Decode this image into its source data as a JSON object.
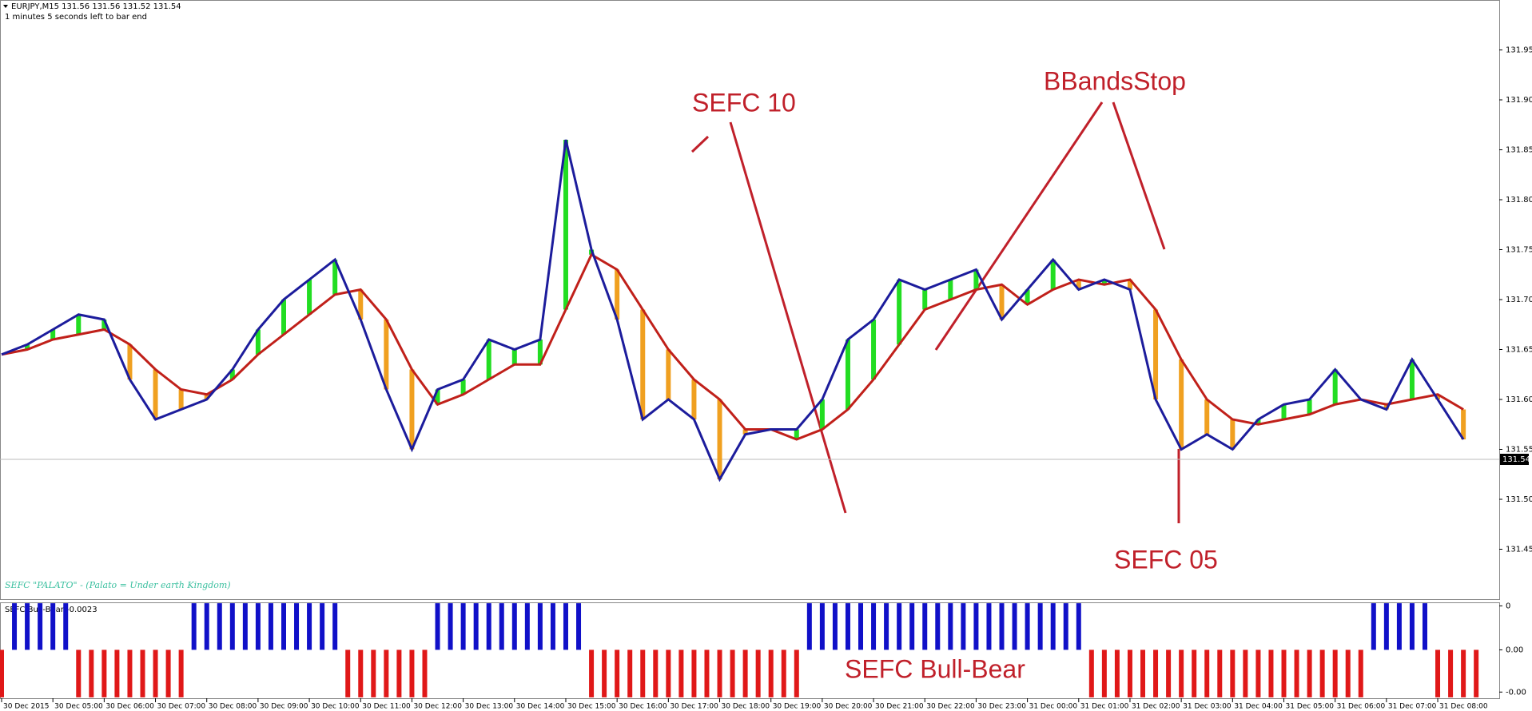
{
  "header": {
    "symbol": "EURJPY,M15  131.56 131.56 131.52 131.54",
    "timer": "1 minutes 5 seconds left to bar end",
    "indicator_note": "SEFC \"PALATO\" - (Palato = Under earth Kingdom)"
  },
  "annotations": {
    "sefc10": "SEFC 10",
    "bbands": "BBandsStop",
    "sefc05": "SEFC 05",
    "bullbear": "SEFC Bull-Bear"
  },
  "chart_data": [
    {
      "type": "line",
      "categories": [
        "30 Dec 2015",
        null,
        "30 Dec 05:00",
        null,
        "30 Dec 06:00",
        null,
        "30 Dec 07:00",
        null,
        "30 Dec 08:00",
        null,
        "30 Dec 09:00",
        null,
        "30 Dec 10:00",
        null,
        "30 Dec 11:00",
        null,
        "30 Dec 12:00",
        null,
        "30 Dec 13:00",
        null,
        "30 Dec 14:00",
        null,
        "30 Dec 15:00",
        null,
        "30 Dec 16:00",
        null,
        "30 Dec 17:00",
        null,
        "30 Dec 18:00",
        null,
        "30 Dec 19:00",
        null,
        "30 Dec 20:00",
        null,
        "30 Dec 21:00",
        null,
        "30 Dec 22:00",
        null,
        "30 Dec 23:00",
        null,
        "31 Dec 00:00",
        null,
        "31 Dec 01:00",
        null,
        "31 Dec 02:00",
        null,
        "31 Dec 03:00",
        null,
        "31 Dec 04:00",
        null,
        "31 Dec 05:00",
        null,
        "31 Dec 06:00",
        null,
        "31 Dec 07:00",
        null,
        "31 Dec 08:00",
        null
      ],
      "series": [
        {
          "color": "#1c1c9c",
          "values": [
            131.645,
            131.655,
            131.67,
            131.685,
            131.68,
            131.62,
            131.58,
            131.59,
            131.6,
            131.63,
            131.67,
            131.7,
            131.72,
            131.74,
            131.68,
            131.61,
            131.55,
            131.61,
            131.62,
            131.66,
            131.65,
            131.66,
            131.86,
            131.75,
            131.68,
            131.58,
            131.6,
            131.58,
            131.52,
            131.565,
            131.57,
            131.57,
            131.6,
            131.66,
            131.68,
            131.72,
            131.71,
            131.72,
            131.73,
            131.68,
            131.71,
            131.74,
            131.71,
            131.72,
            131.71,
            131.6,
            131.55,
            131.565,
            131.55,
            131.58,
            131.595,
            131.6,
            131.63,
            131.6,
            131.59,
            131.64,
            131.6,
            131.56
          ]
        },
        {
          "color": "#c0201a",
          "values": [
            131.645,
            131.65,
            131.66,
            131.665,
            131.67,
            131.655,
            131.63,
            131.61,
            131.605,
            131.62,
            131.645,
            131.665,
            131.685,
            131.705,
            131.71,
            131.68,
            131.63,
            131.595,
            131.605,
            131.62,
            131.635,
            131.635,
            131.69,
            131.745,
            131.73,
            131.69,
            131.65,
            131.62,
            131.6,
            131.57,
            131.57,
            131.56,
            131.57,
            131.59,
            131.62,
            131.655,
            131.69,
            131.7,
            131.71,
            131.715,
            131.695,
            131.71,
            131.72,
            131.715,
            131.72,
            131.69,
            131.64,
            131.6,
            131.58,
            131.575,
            131.58,
            131.585,
            131.595,
            131.6,
            131.595,
            131.6,
            131.605,
            131.59
          ]
        }
      ],
      "up_color": "#22dd22",
      "down_color": "#f0a020",
      "ylim": [
        131.4,
        132.0
      ],
      "yticks": [
        131.45,
        {
          "value": 131.5,
          "label": "131.50"
        },
        131.55,
        {
          "value": 131.6,
          "label": "131.60"
        },
        131.65,
        {
          "value": 131.7,
          "label": "131.70"
        },
        131.75,
        {
          "value": 131.8,
          "label": "131.80"
        },
        131.85,
        {
          "value": 131.9,
          "label": "131.90"
        },
        131.95
      ],
      "last_price": 131.54
    },
    {
      "type": "bar",
      "title": "SEFC Bull-Bear -0.0023",
      "up_color": "#1010c8",
      "down_color": "#e01818",
      "values": [
        -0.0054,
        0.0053,
        0.0053,
        0.0053,
        0.0053,
        0.0053,
        -0.0054,
        -0.0054,
        -0.0054,
        -0.0054,
        -0.0054,
        -0.0054,
        -0.0054,
        -0.0054,
        -0.0054,
        0.0053,
        0.0053,
        0.0053,
        0.0053,
        0.0053,
        0.0053,
        0.0053,
        0.0053,
        0.0053,
        0.0053,
        0.0053,
        0.0053,
        -0.0054,
        -0.0054,
        -0.0054,
        -0.0054,
        -0.0054,
        -0.0054,
        -0.0054,
        0.0053,
        0.0053,
        0.0053,
        0.0053,
        0.0053,
        0.0053,
        0.0053,
        0.0053,
        0.0053,
        0.0053,
        0.0053,
        0.0053,
        -0.0054,
        -0.0054,
        -0.0054,
        -0.0054,
        -0.0054,
        -0.0054,
        -0.0054,
        -0.0054,
        -0.0054,
        -0.0054,
        -0.0054,
        -0.0054,
        -0.0054,
        -0.0054,
        -0.0054,
        -0.0054,
        -0.0054,
        0.0053,
        0.0053,
        0.0053,
        0.0053,
        0.0053,
        0.0053,
        0.0053,
        0.0053,
        0.0053,
        0.0053,
        0.0053,
        0.0053,
        0.0053,
        0.0053,
        0.0053,
        0.0053,
        0.0053,
        0.0053,
        0.0053,
        0.0053,
        0.0053,
        0.0053,
        -0.0054,
        -0.0054,
        -0.0054,
        -0.0054,
        -0.0054,
        -0.0054,
        -0.0054,
        -0.0054,
        -0.0054,
        -0.0054,
        -0.0054,
        -0.0054,
        -0.0054,
        -0.0054,
        -0.0054,
        -0.0054,
        -0.0054,
        -0.0054,
        -0.0054,
        -0.0054,
        -0.0054,
        -0.0054,
        0.0053,
        0.0053,
        0.0053,
        0.0053,
        0.0053,
        -0.0054,
        -0.0054,
        -0.0054,
        -0.0054
      ],
      "ylim": [
        -0.0055,
        0.0054
      ],
      "yticks": [
        {
          "value": 0.005,
          "label": "0"
        },
        {
          "value": 0,
          "label": "0.00"
        },
        {
          "value": -0.0048,
          "label": "-0.00"
        }
      ]
    }
  ]
}
